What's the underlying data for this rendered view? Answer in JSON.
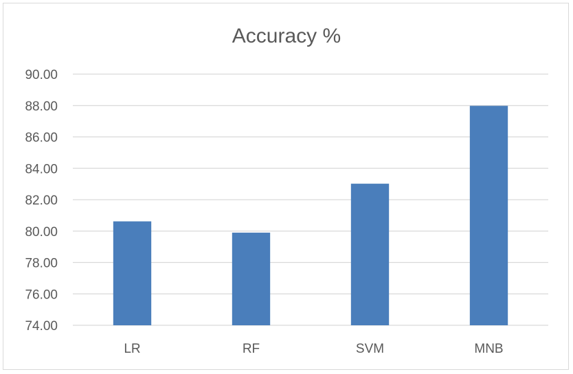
{
  "chart_data": {
    "type": "bar",
    "title": "Accuracy %",
    "categories": [
      "LR",
      "RF",
      "SVM",
      "MNB"
    ],
    "values": [
      80.62,
      79.9,
      83.02,
      87.98
    ],
    "ylim": [
      74,
      90
    ],
    "yticks": [
      74,
      76,
      78,
      80,
      82,
      84,
      86,
      88,
      90
    ],
    "ytick_decimals": 2,
    "grid": true,
    "legend": "none",
    "bar_color": "#4a7ebb",
    "grid_color": "#d9d9d9",
    "text_color": "#595959"
  }
}
